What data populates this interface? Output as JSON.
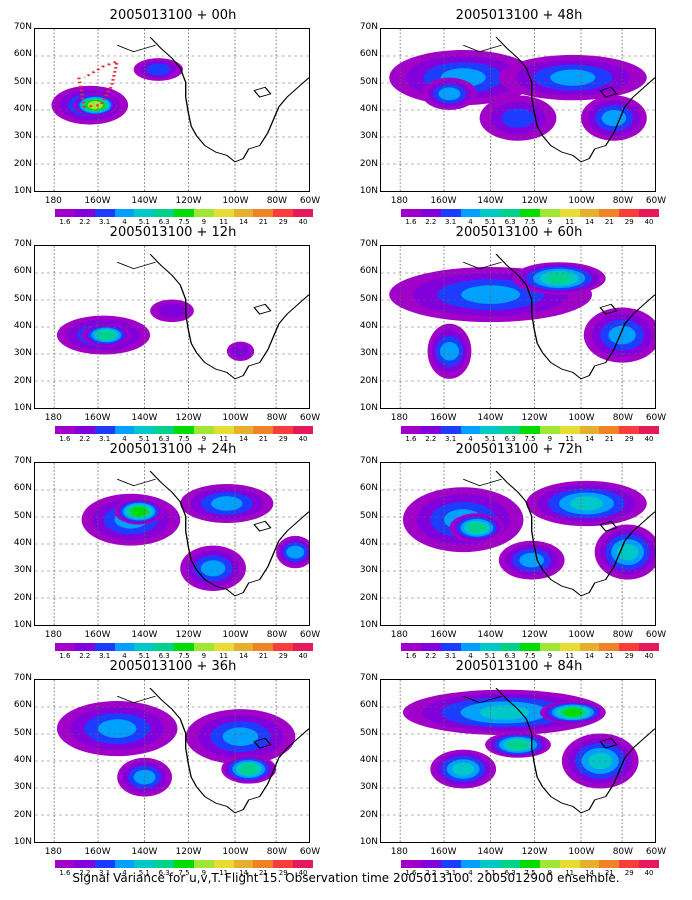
{
  "panels": [
    {
      "title": "2005013100 + 00h"
    },
    {
      "title": "2005013100 + 48h"
    },
    {
      "title": "2005013100 + 12h"
    },
    {
      "title": "2005013100 + 60h"
    },
    {
      "title": "2005013100 + 24h"
    },
    {
      "title": "2005013100 + 72h"
    },
    {
      "title": "2005013100 + 36h"
    },
    {
      "title": "2005013100 + 84h"
    }
  ],
  "lat_labels": [
    "70N",
    "60N",
    "50N",
    "40N",
    "30N",
    "20N",
    "10N"
  ],
  "lon_labels": [
    "180",
    "160W",
    "140W",
    "120W",
    "100W",
    "80W",
    "60W"
  ],
  "colorbar": {
    "colors": [
      "#a000c8",
      "#8200dc",
      "#1e3cff",
      "#00a0ff",
      "#00c8c8",
      "#00d28c",
      "#00dc00",
      "#a0e632",
      "#e6dc32",
      "#e6af2d",
      "#f08228",
      "#fa3c3c",
      "#e6195a"
    ],
    "labels": [
      "1.6",
      "2.2",
      "3.1",
      "4",
      "5.1",
      "6.3",
      "7.5",
      "9",
      "11",
      "14",
      "21",
      "29",
      "40"
    ]
  },
  "caption": "Signal Variance for u,v,T. Flight 15. Observation time 2005013100. 2005012900 ensemble.",
  "flight_track_color": "#e8303c"
}
